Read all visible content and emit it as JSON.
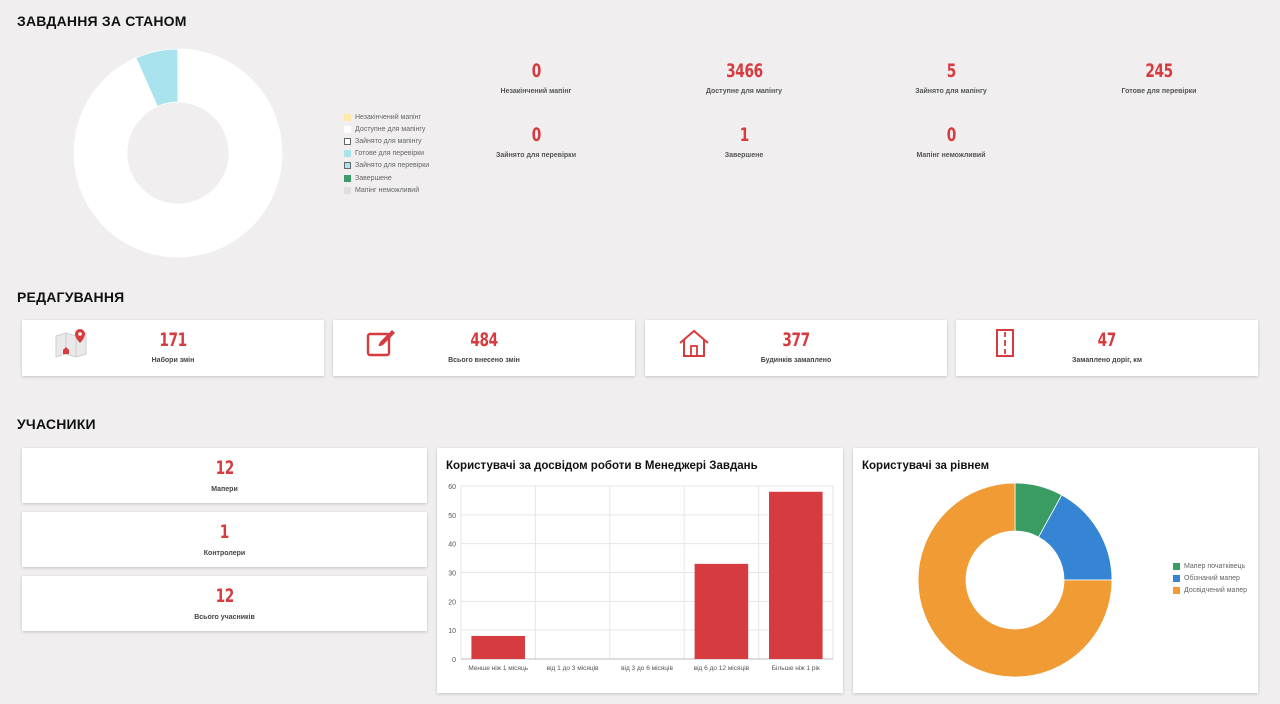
{
  "status": {
    "title": "ЗАВДАННЯ ЗА СТАНОМ",
    "legend": [
      {
        "label": "Незакінчений мапінг",
        "color": "#fde9a8",
        "border": "#fde9a8"
      },
      {
        "label": "Доступне для мапінгу",
        "color": "#ffffff",
        "border": "#ffffff"
      },
      {
        "label": "Зайнято для мапінгу",
        "color": "#ffffff",
        "border": "#666666"
      },
      {
        "label": "Готове для перевірки",
        "color": "#a9e3ee",
        "border": "#a9e3ee"
      },
      {
        "label": "Зайнято для перевірки",
        "color": "#a9e3ee",
        "border": "#666666"
      },
      {
        "label": "Завершене",
        "color": "#3f9b6e",
        "border": "#3f9b6e"
      },
      {
        "label": "Мапінг неможливий",
        "color": "#dfdfdf",
        "border": "#dfdfdf"
      }
    ],
    "stats": [
      {
        "value": "0",
        "label": "Незакінчений мапінг"
      },
      {
        "value": "3466",
        "label": "Доступне для мапінгу"
      },
      {
        "value": "5",
        "label": "Зайнято для мапінгу"
      },
      {
        "value": "245",
        "label": "Готове для перевірки"
      },
      {
        "value": "0",
        "label": "Зайнято для перевірки"
      },
      {
        "value": "1",
        "label": "Завершене"
      },
      {
        "value": "0",
        "label": "Мапінг неможливий"
      }
    ]
  },
  "editing": {
    "title": "РЕДАГУВАННЯ",
    "cards": [
      {
        "icon": "map-pin-icon",
        "value": "171",
        "label": "Набори змін"
      },
      {
        "icon": "edit-icon",
        "value": "484",
        "label": "Всього внесено змін"
      },
      {
        "icon": "house-icon",
        "value": "377",
        "label": "Будинків замаплено"
      },
      {
        "icon": "road-icon",
        "value": "47",
        "label": "Замаплено доріг, км"
      }
    ]
  },
  "participants": {
    "title": "УЧАСНИКИ",
    "cards": [
      {
        "value": "12",
        "label": "Мапери"
      },
      {
        "value": "1",
        "label": "Контролери"
      },
      {
        "value": "12",
        "label": "Всього учасників"
      }
    ]
  },
  "experience_chart": {
    "title": "Користувачі за досвідом роботи в Менеджері Завдань"
  },
  "level_chart": {
    "title": "Користувачі за рівнем",
    "legend": [
      {
        "label": "Мапер початківець",
        "color": "#3a9c63"
      },
      {
        "label": "Обізнаний мапер",
        "color": "#3585d4"
      },
      {
        "label": "Досвідчений мапер",
        "color": "#f09b33"
      }
    ]
  },
  "chart_data": [
    {
      "type": "pie",
      "categories": [
        "Незакінчений мапінг",
        "Доступне для мапінгу",
        "Зайнято для мапінгу",
        "Готове для перевірки",
        "Зайнято для перевірки",
        "Завершене",
        "Мапінг неможливий"
      ],
      "values": [
        0,
        3466,
        5,
        245,
        0,
        1,
        0
      ],
      "colors": [
        "#fde9a8",
        "#ffffff",
        "#ffffff",
        "#a9e3ee",
        "#a9e3ee",
        "#3f9b6e",
        "#dfdfdf"
      ]
    },
    {
      "type": "bar",
      "title": "Користувачі за досвідом роботи в Менеджері Завдань",
      "categories": [
        "Менше ніж 1 місяць",
        "від 1 до 3 місяців",
        "від 3 до 6 місяців",
        "від 6 до 12 місяців",
        "Більше ніж 1 рік"
      ],
      "values": [
        8,
        0,
        0,
        33,
        58
      ],
      "ylim": [
        0,
        60
      ],
      "yticks": [
        0,
        10,
        20,
        30,
        40,
        50,
        60
      ],
      "color": "#d63b3f",
      "grid": true
    },
    {
      "type": "pie",
      "title": "Користувачі за рівнем",
      "categories": [
        "Мапер початківець",
        "Обізнаний мапер",
        "Досвідчений мапер"
      ],
      "values": [
        8,
        17,
        75
      ],
      "colors": [
        "#3a9c63",
        "#3585d4",
        "#f09b33"
      ],
      "legend": "right"
    }
  ]
}
